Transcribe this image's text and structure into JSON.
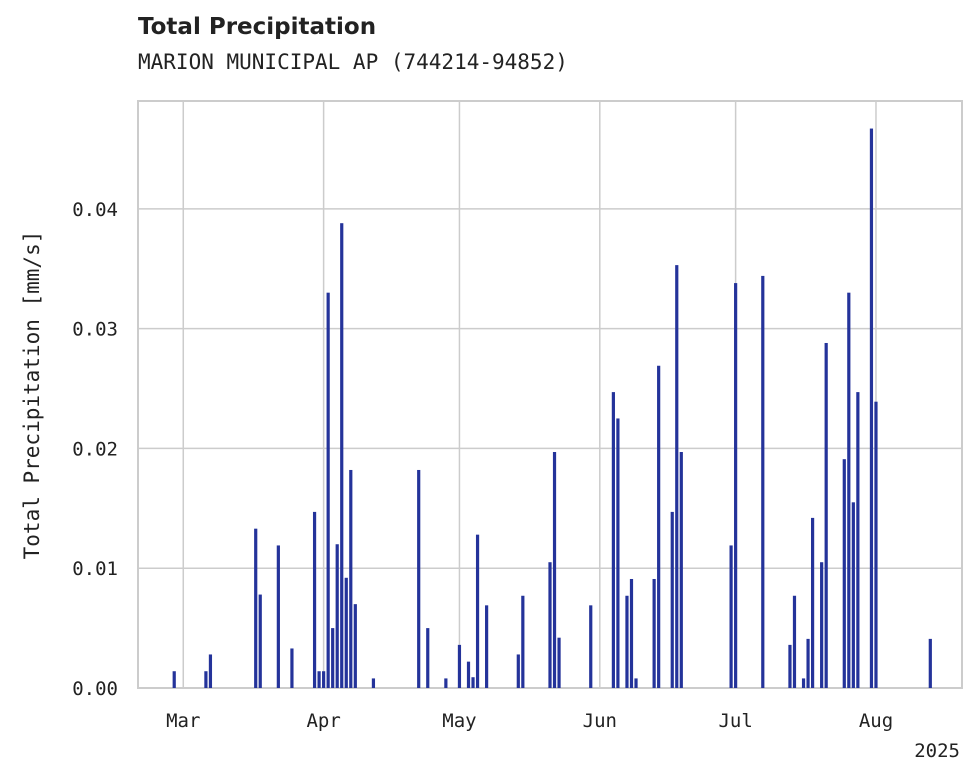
{
  "chart_data": {
    "type": "bar",
    "title": "Total Precipitation",
    "subtitle": "MARION MUNICIPAL AP (744214-94852)",
    "ylabel": "Total Precipitation [mm/s]",
    "xlabel": "",
    "x_axis_year": "2025",
    "ylim": [
      0,
      0.049
    ],
    "xlim": [
      "2025-02-19",
      "2025-08-20"
    ],
    "grid": true,
    "y_ticks": [
      {
        "value": 0.0,
        "label": "0.00"
      },
      {
        "value": 0.01,
        "label": "0.01"
      },
      {
        "value": 0.02,
        "label": "0.02"
      },
      {
        "value": 0.03,
        "label": "0.03"
      },
      {
        "value": 0.04,
        "label": "0.04"
      }
    ],
    "x_ticks": [
      {
        "date": "2025-03-01",
        "label": "Mar"
      },
      {
        "date": "2025-04-01",
        "label": "Apr"
      },
      {
        "date": "2025-05-01",
        "label": "May"
      },
      {
        "date": "2025-06-01",
        "label": "Jun"
      },
      {
        "date": "2025-07-01",
        "label": "Jul"
      },
      {
        "date": "2025-08-01",
        "label": "Aug"
      }
    ],
    "series": [
      {
        "color": "#24339a",
        "points": [
          [
            "2025-02-27",
            0.0014
          ],
          [
            "2025-03-06",
            0.0014
          ],
          [
            "2025-03-07",
            0.0028
          ],
          [
            "2025-03-17",
            0.0133
          ],
          [
            "2025-03-18",
            0.0078
          ],
          [
            "2025-03-22",
            0.0119
          ],
          [
            "2025-03-25",
            0.0033
          ],
          [
            "2025-03-30",
            0.0147
          ],
          [
            "2025-03-31",
            0.0014
          ],
          [
            "2025-04-01",
            0.0014
          ],
          [
            "2025-04-02",
            0.033
          ],
          [
            "2025-04-03",
            0.005
          ],
          [
            "2025-04-04",
            0.012
          ],
          [
            "2025-04-05",
            0.0388
          ],
          [
            "2025-04-06",
            0.0092
          ],
          [
            "2025-04-07",
            0.0182
          ],
          [
            "2025-04-08",
            0.007
          ],
          [
            "2025-04-12",
            0.0008
          ],
          [
            "2025-04-22",
            0.0182
          ],
          [
            "2025-04-24",
            0.005
          ],
          [
            "2025-04-28",
            0.0008
          ],
          [
            "2025-05-01",
            0.0036
          ],
          [
            "2025-05-03",
            0.0022
          ],
          [
            "2025-05-04",
            0.0009
          ],
          [
            "2025-05-05",
            0.0128
          ],
          [
            "2025-05-07",
            0.0069
          ],
          [
            "2025-05-14",
            0.0028
          ],
          [
            "2025-05-15",
            0.0077
          ],
          [
            "2025-05-21",
            0.0105
          ],
          [
            "2025-05-22",
            0.0197
          ],
          [
            "2025-05-23",
            0.0042
          ],
          [
            "2025-05-30",
            0.0069
          ],
          [
            "2025-06-04",
            0.0247
          ],
          [
            "2025-06-05",
            0.0225
          ],
          [
            "2025-06-07",
            0.0077
          ],
          [
            "2025-06-08",
            0.0091
          ],
          [
            "2025-06-09",
            0.0008
          ],
          [
            "2025-06-13",
            0.0091
          ],
          [
            "2025-06-14",
            0.0269
          ],
          [
            "2025-06-17",
            0.0147
          ],
          [
            "2025-06-18",
            0.0353
          ],
          [
            "2025-06-19",
            0.0197
          ],
          [
            "2025-06-30",
            0.0119
          ],
          [
            "2025-07-01",
            0.0338
          ],
          [
            "2025-07-07",
            0.0344
          ],
          [
            "2025-07-13",
            0.0036
          ],
          [
            "2025-07-14",
            0.0077
          ],
          [
            "2025-07-16",
            0.0008
          ],
          [
            "2025-07-17",
            0.0041
          ],
          [
            "2025-07-18",
            0.0142
          ],
          [
            "2025-07-20",
            0.0105
          ],
          [
            "2025-07-21",
            0.0288
          ],
          [
            "2025-07-25",
            0.0191
          ],
          [
            "2025-07-26",
            0.033
          ],
          [
            "2025-07-27",
            0.0155
          ],
          [
            "2025-07-28",
            0.0247
          ],
          [
            "2025-07-31",
            0.0467
          ],
          [
            "2025-08-01",
            0.0239
          ],
          [
            "2025-08-13",
            0.0041
          ]
        ]
      }
    ]
  }
}
